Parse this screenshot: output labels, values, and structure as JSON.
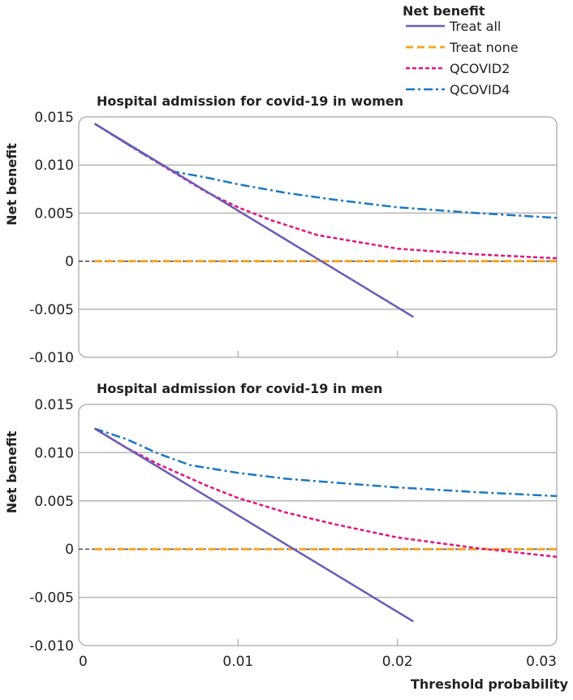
{
  "chart_data": [
    {
      "type": "line",
      "title": "Hospital admission for covid-19 in women",
      "xlabel": "",
      "ylabel": "Net benefit",
      "xlim": [
        0,
        0.03
      ],
      "ylim": [
        -0.01,
        0.015
      ],
      "xticks": [
        "0",
        "0.01",
        "0.02",
        "0.03"
      ],
      "yticks": [
        "0.015",
        "0.010",
        "0.005",
        "0",
        "-0.005",
        "-0.010"
      ],
      "grid": true,
      "series": [
        {
          "name": "Treat all",
          "color": "#6b5bb5",
          "style": "solid",
          "x": [
            0.001,
            0.021
          ],
          "y": [
            0.0143,
            -0.0058
          ]
        },
        {
          "name": "Treat none",
          "color": "#f5a623",
          "style": "dashed",
          "x": [
            0.001,
            0.03
          ],
          "y": [
            0,
            0
          ]
        },
        {
          "name": "QCOVID2",
          "color": "#e2167f",
          "style": "dotted",
          "x": [
            0.001,
            0.004,
            0.006,
            0.008,
            0.01,
            0.012,
            0.015,
            0.02,
            0.025,
            0.03
          ],
          "y": [
            0.0143,
            0.0112,
            0.0092,
            0.0072,
            0.0056,
            0.0043,
            0.0027,
            0.0013,
            0.0007,
            0.0003
          ]
        },
        {
          "name": "QCOVID4",
          "color": "#1a78c2",
          "style": "dashdot",
          "x": [
            0.001,
            0.004,
            0.006,
            0.008,
            0.01,
            0.013,
            0.016,
            0.02,
            0.025,
            0.03
          ],
          "y": [
            0.0143,
            0.0112,
            0.0093,
            0.0087,
            0.008,
            0.0071,
            0.0064,
            0.0056,
            0.005,
            0.0045
          ]
        }
      ]
    },
    {
      "type": "line",
      "title": "Hospital admission for covid-19 in men",
      "xlabel": "Threshold probability",
      "ylabel": "Net benefit",
      "xlim": [
        0,
        0.03
      ],
      "ylim": [
        -0.01,
        0.015
      ],
      "xticks": [
        "0",
        "0.01",
        "0.02",
        "0.03"
      ],
      "yticks": [
        "0.015",
        "0.010",
        "0.005",
        "0",
        "-0.005",
        "-0.010"
      ],
      "grid": true,
      "series": [
        {
          "name": "Treat all",
          "color": "#6b5bb5",
          "style": "solid",
          "x": [
            0.001,
            0.021
          ],
          "y": [
            0.0125,
            -0.0075
          ]
        },
        {
          "name": "Treat none",
          "color": "#f5a623",
          "style": "dashed",
          "x": [
            0.001,
            0.03
          ],
          "y": [
            0,
            0
          ]
        },
        {
          "name": "QCOVID2",
          "color": "#e2167f",
          "style": "dotted",
          "x": [
            0.001,
            0.003,
            0.005,
            0.008,
            0.01,
            0.013,
            0.016,
            0.02,
            0.025,
            0.03
          ],
          "y": [
            0.0125,
            0.0105,
            0.0088,
            0.0066,
            0.0053,
            0.0038,
            0.0026,
            0.0012,
            0.0001,
            -0.0008
          ]
        },
        {
          "name": "QCOVID4",
          "color": "#1a78c2",
          "style": "dashdot",
          "x": [
            0.001,
            0.003,
            0.005,
            0.007,
            0.01,
            0.013,
            0.016,
            0.02,
            0.025,
            0.03
          ],
          "y": [
            0.0125,
            0.0114,
            0.0099,
            0.0087,
            0.0079,
            0.0073,
            0.0069,
            0.0064,
            0.0059,
            0.0055
          ]
        }
      ]
    }
  ],
  "legend": {
    "title": "Net benefit",
    "placement": "top-right",
    "items": [
      "Treat all",
      "Treat none",
      "QCOVID2",
      "QCOVID4"
    ]
  }
}
